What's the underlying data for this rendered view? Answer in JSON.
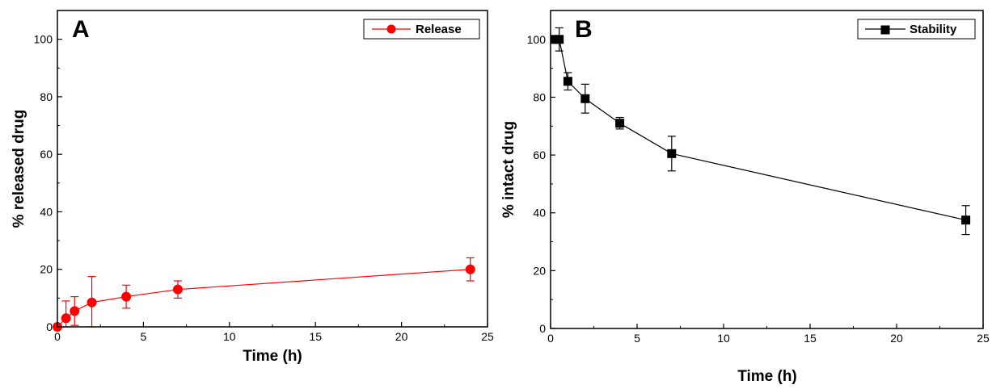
{
  "chart_data": [
    {
      "type": "line",
      "panel_label": "A",
      "xlabel": "Time (h)",
      "ylabel": "% released drug",
      "xlim": [
        0,
        25
      ],
      "ylim": [
        0,
        110
      ],
      "xticks": [
        0,
        5,
        10,
        15,
        20,
        25
      ],
      "yticks": [
        0,
        20,
        40,
        60,
        80,
        100
      ],
      "legend_position": "top-right",
      "marker": "circle",
      "color": "#ff0000",
      "series": [
        {
          "name": "Release",
          "x": [
            0,
            0.5,
            1,
            2,
            4,
            7,
            24
          ],
          "y": [
            0,
            3,
            5.5,
            8.5,
            10.5,
            13,
            20
          ],
          "error": [
            0,
            6,
            5,
            9,
            4,
            3,
            4
          ]
        }
      ]
    },
    {
      "type": "line",
      "panel_label": "B",
      "xlabel": "Time (h)",
      "ylabel": "% intact drug",
      "xlim": [
        0,
        25
      ],
      "ylim": [
        0,
        110
      ],
      "xticks": [
        0,
        5,
        10,
        15,
        20,
        25
      ],
      "yticks": [
        0,
        20,
        40,
        60,
        80,
        100
      ],
      "legend_position": "top-right",
      "marker": "square",
      "color": "#000000",
      "series": [
        {
          "name": "Stability",
          "x": [
            0.25,
            0.5,
            1,
            2,
            4,
            7,
            24
          ],
          "y": [
            100,
            100,
            85.5,
            79.5,
            71,
            60.5,
            37.5
          ],
          "error": [
            0,
            4,
            3,
            5,
            2,
            6,
            5
          ]
        }
      ]
    }
  ]
}
